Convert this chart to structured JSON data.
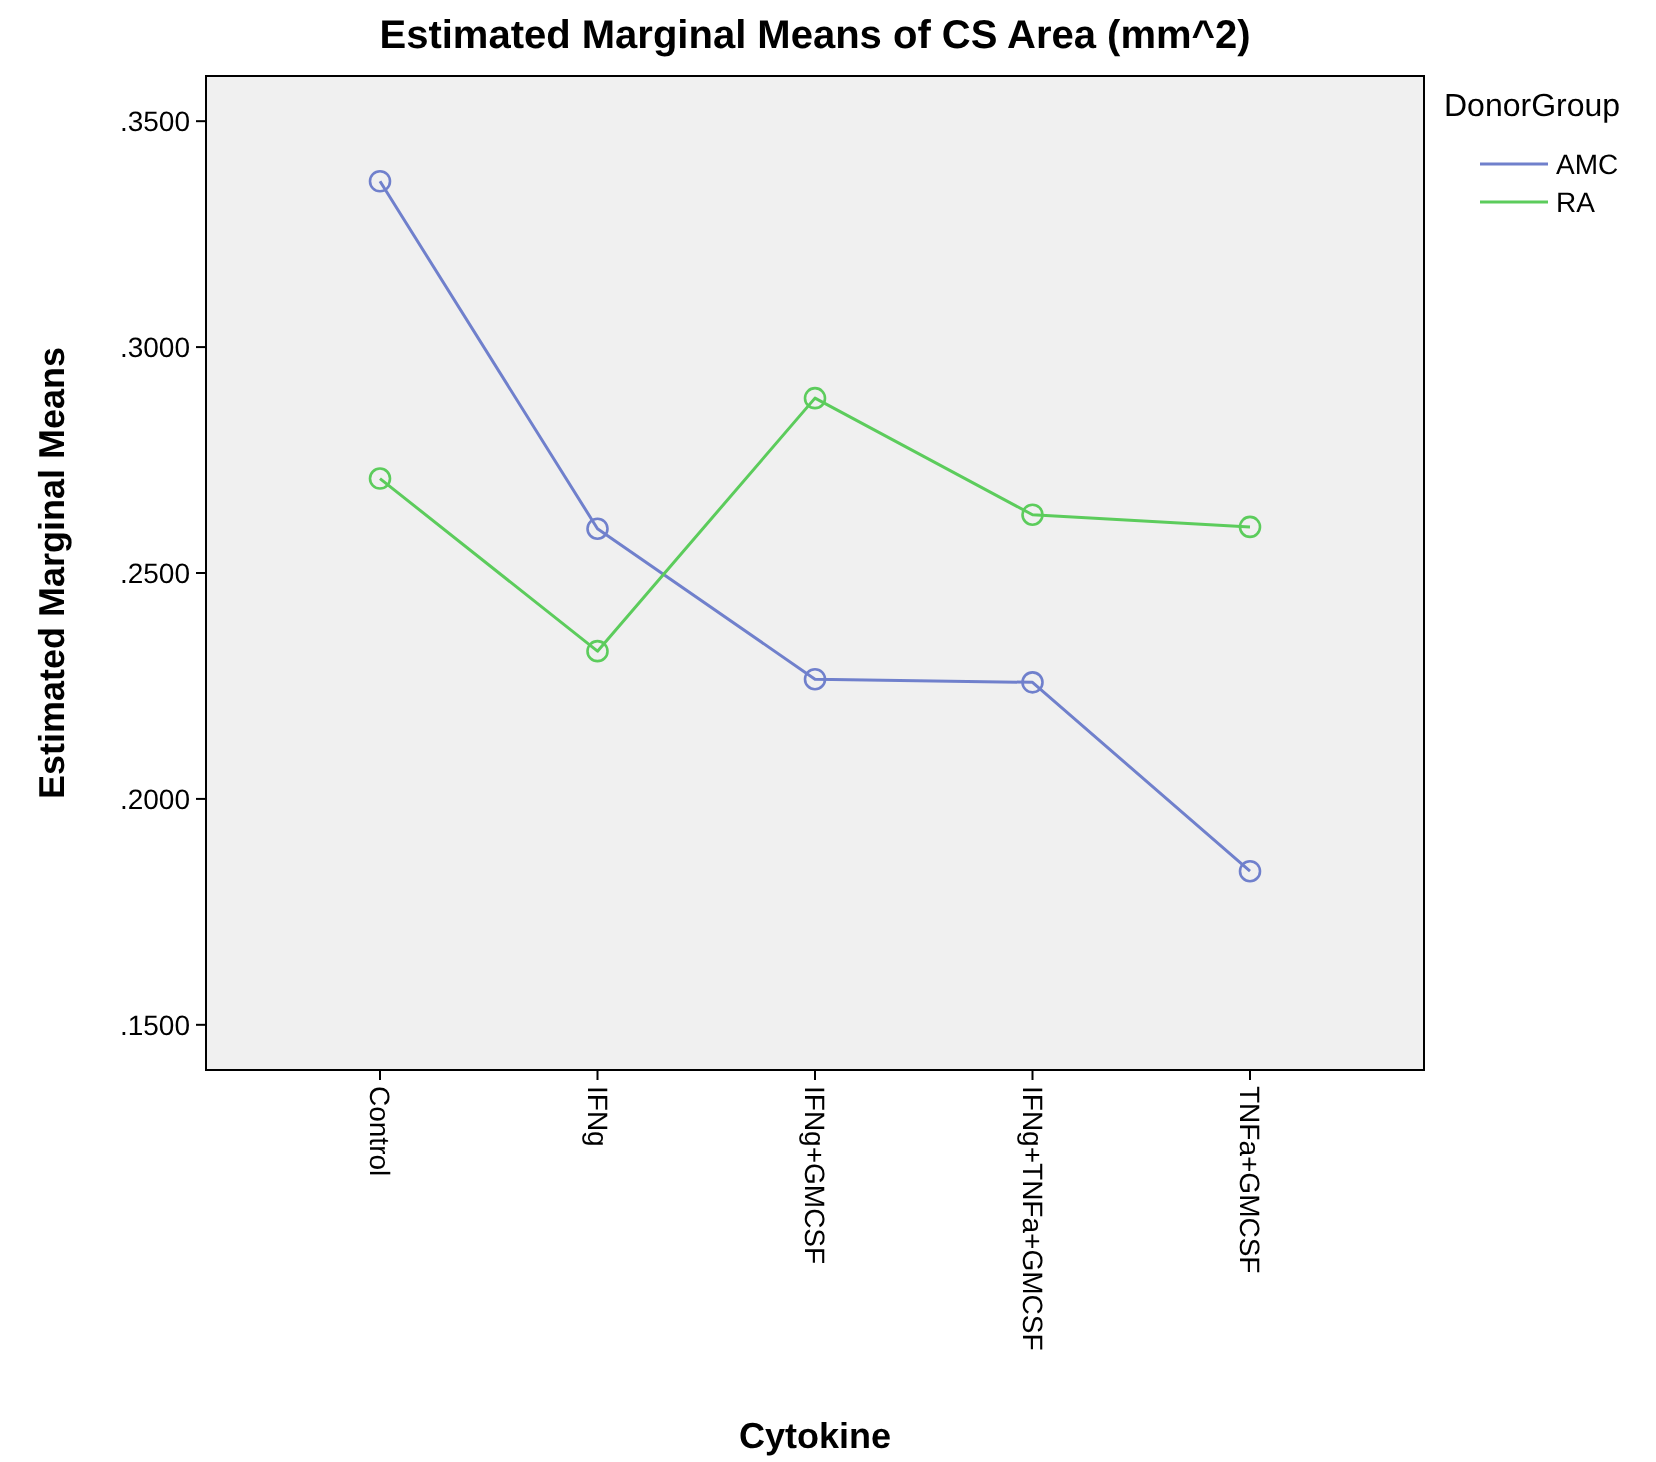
{
  "chart_data": {
    "type": "line",
    "title": "Estimated Marginal Means of CS Area (mm^2)",
    "xlabel": "Cytokine",
    "ylabel": "Estimated Marginal Means",
    "legend_title": "DonorGroup",
    "categories": [
      "Control",
      "IFNg",
      "IFNg+GMCSF",
      "IFNg+TNFa+GMCSF",
      "TNFa+GMCSF"
    ],
    "series": [
      {
        "name": "AMC",
        "color": "#7080cc",
        "values": [
          0.3367,
          0.2598,
          0.2265,
          0.2258,
          0.184
        ]
      },
      {
        "name": "RA",
        "color": "#5ccc5c",
        "values": [
          0.2709,
          0.2327,
          0.2887,
          0.2629,
          0.2602
        ]
      }
    ],
    "ylim": [
      0.14,
      0.36
    ],
    "yticks": [
      {
        "value": 0.15,
        "label": ".1500"
      },
      {
        "value": 0.2,
        "label": ".2000"
      },
      {
        "value": 0.25,
        "label": ".2500"
      },
      {
        "value": 0.3,
        "label": ".3000"
      },
      {
        "value": 0.35,
        "label": ".3500"
      }
    ],
    "grid": false,
    "legend": "right",
    "marker": "circle",
    "line_style": "solid"
  }
}
